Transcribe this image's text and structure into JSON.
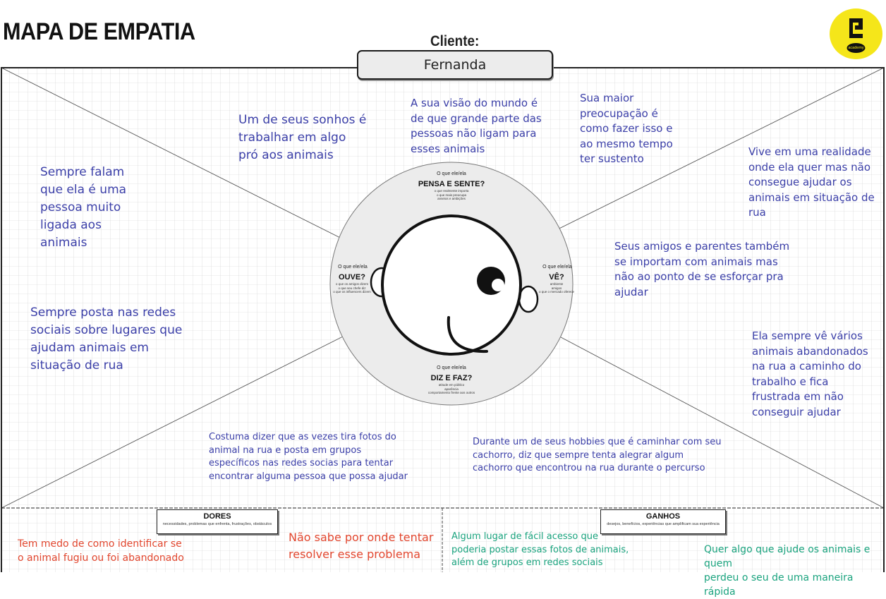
{
  "header": {
    "title": "MAPA DE EMPATIA",
    "client_label": "Cliente:",
    "client_name": "Fernanda",
    "logo_text": "academy"
  },
  "quadrants": {
    "pensa": {
      "prefix": "O que ele/ela",
      "title": "PENSA E SENTE?",
      "subtitle": "o que realmente importa\no que mais preocupa\nanseios e ambições"
    },
    "ouve": {
      "prefix": "O que ele/ela",
      "title": "OUVE?",
      "subtitle": "o que os amigos dizem\no que seu chefe diz\no que os influencers dizem"
    },
    "ve": {
      "prefix": "O que ele/ela",
      "title": "VÊ?",
      "subtitle": "ambiente\namigos\no que o mercado oferece"
    },
    "diz": {
      "prefix": "O que ele/ela",
      "title": "DIZ E FAZ?",
      "subtitle": "atitude em público\naparência\ncomportamento frente aos outros"
    }
  },
  "sections": {
    "dores": {
      "title": "DORES",
      "subtitle": "necessidades, problemas que enfrenta, frustrações, obstáculos"
    },
    "ganhos": {
      "title": "GANHOS",
      "subtitle": "desejos, benefícios, experiências que amplificam sua experiência"
    }
  },
  "notes": {
    "sonhos": "Um de seus sonhos é\ntrabalhar em algo\npró aos animais",
    "visao": "A sua visão do mundo é\nde que grande parte das\npessoas não ligam para\nesses animais",
    "preocupacao": "Sua maior\npreocupação é\ncomo fazer isso e\nao mesmo tempo\nter sustento",
    "realidade": "Vive em uma realidade\nonde ela quer mas não\nconsegue ajudar os\nanimais em situação de\nrua",
    "falam": "Sempre falam\nque ela é uma\npessoa muito\nligada aos\nanimais",
    "amigos": "Seus amigos e parentes também\nse importam com animais mas\nnão ao ponto de se esforçar pra\najudar",
    "posta": "Sempre posta nas redes\nsociais sobre lugares que\najudam animais em\nsituação de rua",
    "ve_varios": "Ela sempre vê vários\nanimais abandonados\nna rua a caminho do\ntrabalho e fica\nfrustrada em não\nconseguir ajudar",
    "costuma": "Costuma dizer que as vezes tira fotos do\nanimal na rua e posta em grupos\nespecíficos nas redes socias para tentar\nencontrar alguma pessoa que possa ajudar",
    "hobbies": "Durante um de seus hobbies que é caminhar com seu\ncachorro, diz que sempre tenta alegrar algum\ncachorro que encontrou na rua durante o percurso",
    "dor1": "Tem medo de como identificar se\no animal fugiu ou foi abandonado",
    "dor2": "Não sabe por onde tentar\nresolver esse problema",
    "ganho1": "Algum lugar de fácil acesso que\npoderia postar essas fotos de animais,\nalém de grupos em redes sociais",
    "ganho2": "Quer algo que ajude os animais e quem\nperdeu o seu de uma maneira rápida"
  },
  "colors": {
    "note_blue": "#3b3fa8",
    "dores_red": "#e2472f",
    "ganhos_teal": "#1aa37e",
    "logo_yellow": "#f5e61a"
  }
}
